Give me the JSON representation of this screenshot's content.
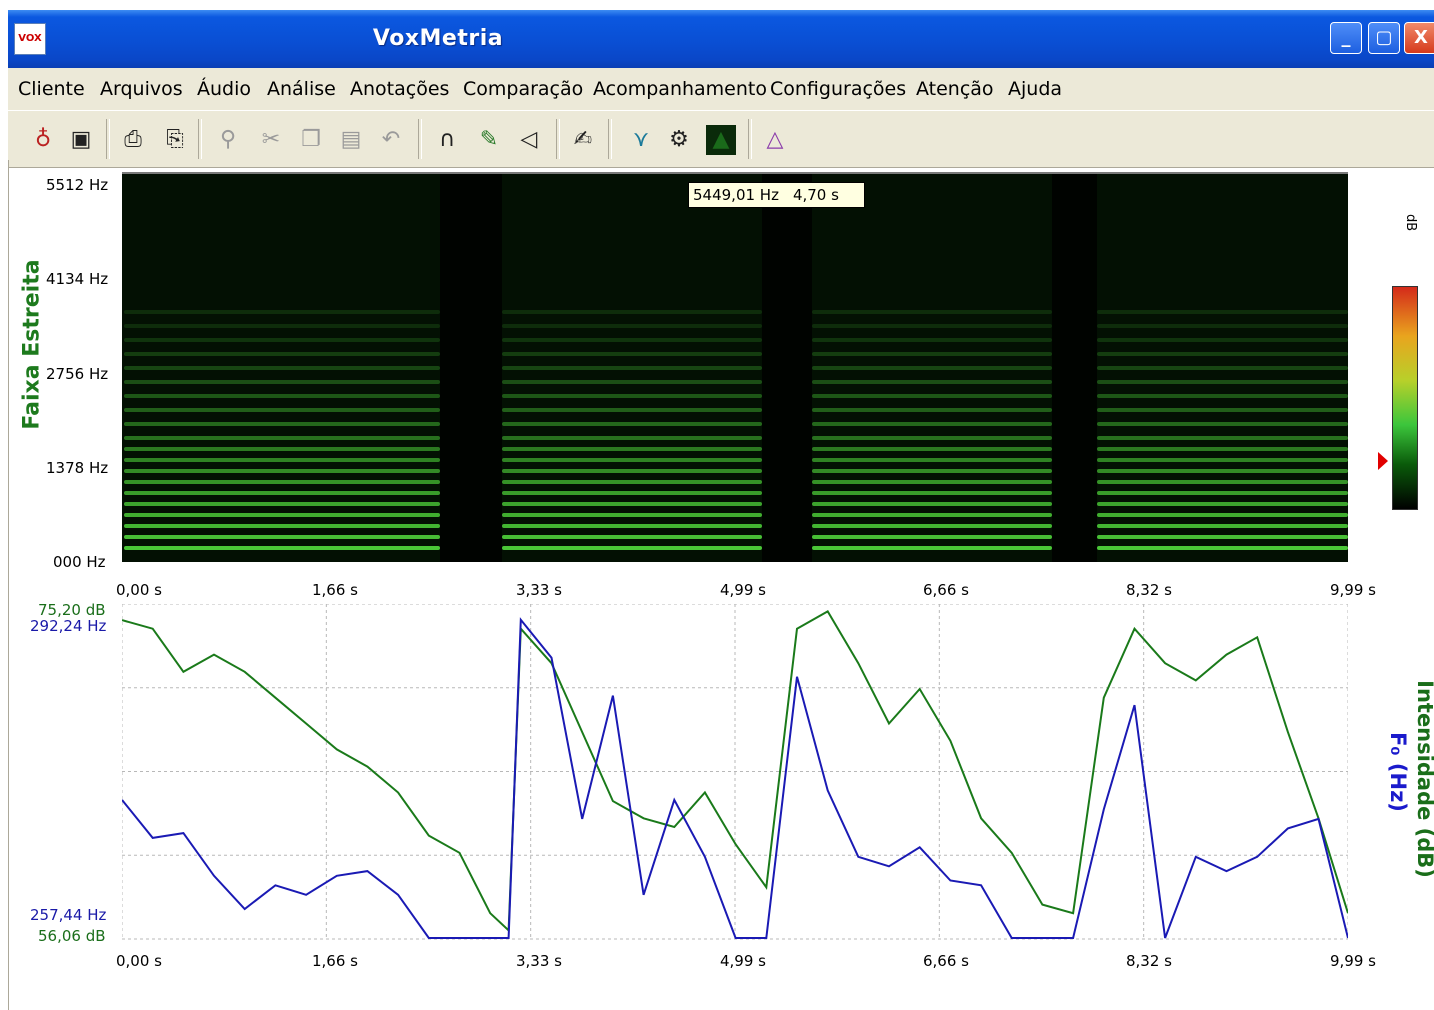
{
  "window": {
    "title": "VoxMetria",
    "icon_text": "VOX"
  },
  "title_buttons": {
    "minimize": "_",
    "maximize": "▢",
    "close": "X"
  },
  "menu": [
    "Cliente",
    "Arquivos",
    "Áudio",
    "Análise",
    "Anotações",
    "Comparação",
    "Acompanhamento",
    "Configurações",
    "Atenção",
    "Ajuda"
  ],
  "toolbar_icons": [
    "client-icon",
    "display-icon",
    "print-preview-icon",
    "print-icon",
    "zoom-icon",
    "cut-icon",
    "copy-icon",
    "paste-icon",
    "undo-icon",
    "headphones-icon",
    "record-icon",
    "speaker-icon",
    "edit-icon",
    "analysis-icon",
    "settings-icon",
    "spectrogram-icon",
    "triangle-icon"
  ],
  "spectrogram": {
    "title": "Faixa Estreita",
    "y_ticks": [
      "5512 Hz",
      "4134 Hz",
      "2756 Hz",
      "1378 Hz",
      "000 Hz"
    ],
    "x_ticks": [
      "0,00 s",
      "1,66 s",
      "3,33 s",
      "4,99 s",
      "6,66 s",
      "8,32 s",
      "9,99 s"
    ],
    "tooltip": {
      "freq": "5449,01 Hz",
      "time": "4,70 s"
    },
    "colors": {
      "background": "#031003",
      "harmonic": "#4ed23a"
    }
  },
  "colorbar": {
    "label": "dB",
    "colors": [
      "#d42a1a",
      "#e9a41e",
      "#3cc63c",
      "#000000"
    ]
  },
  "plot": {
    "intensity_max": "75,20 dB",
    "f0_max": "292,24 Hz",
    "f0_min": "257,44 Hz",
    "intensity_min": "56,06 dB",
    "f0_axis_label": "F₀ (Hz)",
    "intensity_axis_label": "Intensidade (dB)",
    "x_ticks": [
      "0,00 s",
      "1,66 s",
      "3,33 s",
      "4,99 s",
      "6,66 s",
      "8,32 s",
      "9,99 s"
    ]
  },
  "chart_data": {
    "type": "line",
    "xlim": [
      0,
      9.99
    ],
    "x": [
      0.0,
      0.25,
      0.5,
      0.75,
      1.0,
      1.25,
      1.5,
      1.75,
      2.0,
      2.25,
      2.5,
      2.75,
      3.0,
      3.15,
      3.25,
      3.5,
      3.75,
      4.0,
      4.25,
      4.5,
      4.75,
      5.0,
      5.25,
      5.5,
      5.75,
      6.0,
      6.25,
      6.5,
      6.75,
      7.0,
      7.25,
      7.5,
      7.75,
      8.0,
      8.25,
      8.5,
      8.75,
      9.0,
      9.25,
      9.5,
      9.75,
      9.99
    ],
    "series": [
      {
        "name": "Intensidade (dB)",
        "axis": "right",
        "color": "#1a7a1a",
        "ylim": [
          56.06,
          75.2
        ],
        "values": [
          74.5,
          74.0,
          71.5,
          72.5,
          71.5,
          70.0,
          68.5,
          67.0,
          66.0,
          64.5,
          62.0,
          61.0,
          57.5,
          56.5,
          74.0,
          72.0,
          68.0,
          64.0,
          63.0,
          62.5,
          64.5,
          61.5,
          59.0,
          74.0,
          75.0,
          72.0,
          68.5,
          70.5,
          67.5,
          63.0,
          61.0,
          58.0,
          57.5,
          70.0,
          74.0,
          72.0,
          71.0,
          72.5,
          73.5,
          68.0,
          63.0,
          57.5
        ]
      },
      {
        "name": "F0 (Hz)",
        "axis": "left",
        "color": "#1a1ab4",
        "ylim": [
          257.44,
          292.24
        ],
        "values": [
          272.0,
          268.0,
          268.5,
          264.0,
          260.5,
          263.0,
          262.0,
          264.0,
          264.5,
          262.0,
          257.44,
          257.44,
          257.44,
          257.44,
          291.0,
          287.0,
          270.0,
          283.0,
          262.0,
          272.0,
          266.0,
          257.44,
          257.44,
          285.0,
          273.0,
          266.0,
          265.0,
          267.0,
          263.5,
          263.0,
          257.44,
          257.44,
          257.44,
          271.0,
          282.0,
          257.44,
          266.0,
          264.5,
          266.0,
          269.0,
          270.0,
          257.44
        ]
      }
    ]
  }
}
